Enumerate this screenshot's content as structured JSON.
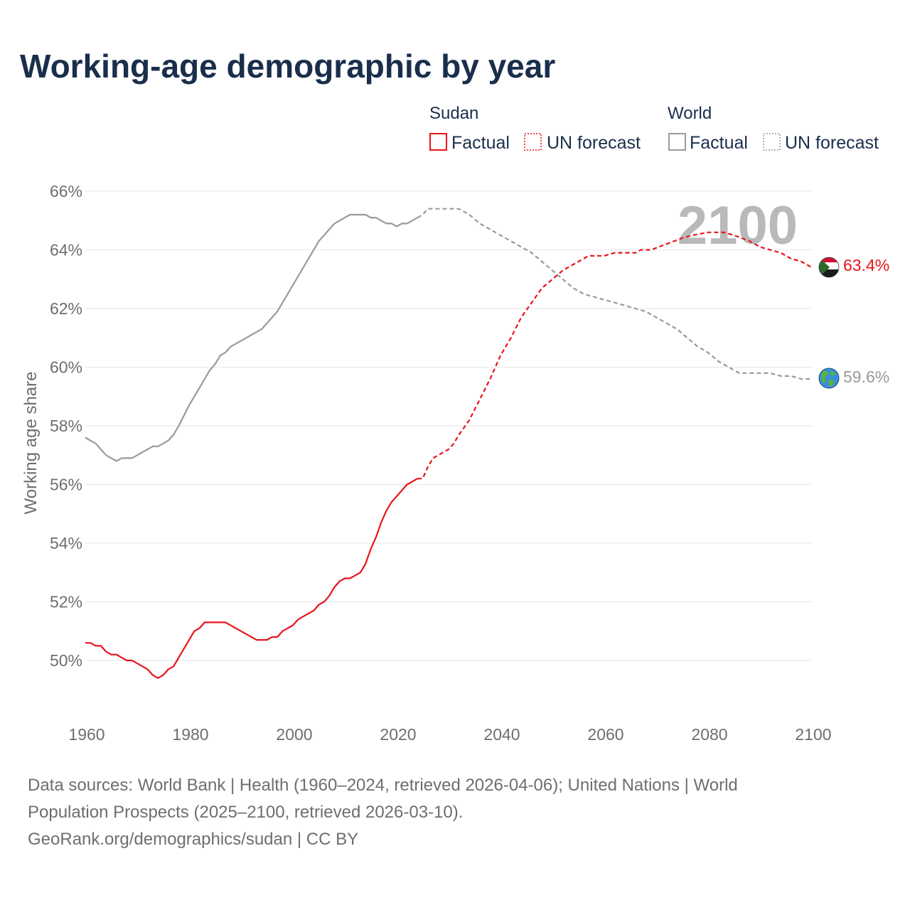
{
  "title": "Working-age demographic by year",
  "legend": {
    "groups": [
      {
        "name": "Sudan",
        "factual_label": "Factual",
        "forecast_label": "UN forecast",
        "color": "#e8141a"
      },
      {
        "name": "World",
        "factual_label": "Factual",
        "forecast_label": "UN forecast",
        "color": "#9a9a9a"
      }
    ]
  },
  "current_year_label": "2100",
  "footer": {
    "line1": "Data sources: World Bank | Health (1960–2024, retrieved 2026-04-06); United Nations | World",
    "line2": "Population Prospects (2025–2100, retrieved 2026-03-10).",
    "line3": "GeoRank.org/demographics/sudan | CC BY"
  },
  "chart_data": {
    "type": "line",
    "title": "Working-age demographic by year",
    "xlabel": "",
    "ylabel": "Working age share",
    "xlim": [
      1960,
      2100
    ],
    "ylim": [
      48.5,
      66.5
    ],
    "x_ticks": [
      "1960",
      "1980",
      "2000",
      "2020",
      "2040",
      "2060",
      "2080",
      "2100"
    ],
    "y_ticks": [
      "50%",
      "52%",
      "54%",
      "56%",
      "58%",
      "60%",
      "62%",
      "64%",
      "66%"
    ],
    "grid": true,
    "series": [
      {
        "name": "Sudan – Factual",
        "style": "solid",
        "color": "#e8141a",
        "x": [
          1960,
          1961,
          1962,
          1963,
          1964,
          1965,
          1966,
          1967,
          1968,
          1969,
          1970,
          1972,
          1973,
          1974,
          1975,
          1976,
          1977,
          1978,
          1980,
          1981,
          1982,
          1983,
          1984,
          1986,
          1987,
          1990,
          1993,
          1995,
          1996,
          1997,
          1998,
          2000,
          2001,
          2002,
          2004,
          2005,
          2006,
          2007,
          2008,
          2009,
          2010,
          2011,
          2012,
          2013,
          2014,
          2015,
          2016,
          2017,
          2018,
          2019,
          2020,
          2021,
          2022,
          2023,
          2024
        ],
        "y": [
          50.6,
          50.6,
          50.5,
          50.5,
          50.3,
          50.2,
          50.2,
          50.1,
          50.0,
          50.0,
          49.9,
          49.7,
          49.5,
          49.4,
          49.5,
          49.7,
          49.8,
          50.1,
          50.7,
          51.0,
          51.1,
          51.3,
          51.3,
          51.3,
          51.3,
          51.0,
          50.7,
          50.7,
          50.8,
          50.8,
          51.0,
          51.2,
          51.4,
          51.5,
          51.7,
          51.9,
          52.0,
          52.2,
          52.5,
          52.7,
          52.8,
          52.8,
          52.9,
          53.0,
          53.3,
          53.8,
          54.2,
          54.7,
          55.1,
          55.4,
          55.6,
          55.8,
          56.0,
          56.1,
          56.2
        ]
      },
      {
        "name": "Sudan – UN forecast",
        "style": "dashed",
        "color": "#e8141a",
        "x": [
          2024,
          2025,
          2026,
          2027,
          2028,
          2030,
          2031,
          2032,
          2034,
          2036,
          2038,
          2040,
          2042,
          2044,
          2046,
          2048,
          2050,
          2052,
          2054,
          2056,
          2057,
          2060,
          2062,
          2066,
          2067,
          2069,
          2072,
          2075,
          2077,
          2080,
          2083,
          2085,
          2088,
          2090,
          2092,
          2094,
          2096,
          2098,
          2100
        ],
        "y": [
          56.2,
          56.2,
          56.6,
          56.9,
          57.0,
          57.2,
          57.4,
          57.7,
          58.2,
          58.9,
          59.6,
          60.4,
          61.0,
          61.7,
          62.2,
          62.7,
          63.0,
          63.3,
          63.5,
          63.7,
          63.8,
          63.8,
          63.9,
          63.9,
          64.0,
          64.0,
          64.2,
          64.4,
          64.5,
          64.6,
          64.6,
          64.5,
          64.3,
          64.1,
          64.0,
          63.9,
          63.7,
          63.6,
          63.4
        ]
      },
      {
        "name": "World – Factual",
        "style": "solid",
        "color": "#9a9a9a",
        "x": [
          1960,
          1962,
          1964,
          1966,
          1967,
          1969,
          1971,
          1972,
          1973,
          1974,
          1975,
          1976,
          1977,
          1978,
          1980,
          1982,
          1984,
          1985,
          1986,
          1987,
          1988,
          1990,
          1992,
          1994,
          1997,
          2000,
          2003,
          2005,
          2008,
          2010,
          2011,
          2014,
          2015,
          2016,
          2017,
          2018,
          2019,
          2020,
          2021,
          2022,
          2023,
          2024
        ],
        "y": [
          57.6,
          57.4,
          57.0,
          56.8,
          56.9,
          56.9,
          57.1,
          57.2,
          57.3,
          57.3,
          57.4,
          57.5,
          57.7,
          58.0,
          58.7,
          59.3,
          59.9,
          60.1,
          60.4,
          60.5,
          60.7,
          60.9,
          61.1,
          61.3,
          61.9,
          62.8,
          63.7,
          64.3,
          64.9,
          65.1,
          65.2,
          65.2,
          65.1,
          65.1,
          65.0,
          64.9,
          64.9,
          64.8,
          64.9,
          64.9,
          65.0,
          65.1
        ]
      },
      {
        "name": "World – UN forecast",
        "style": "dashed",
        "color": "#9a9a9a",
        "x": [
          2024,
          2025,
          2026,
          2028,
          2030,
          2032,
          2034,
          2036,
          2038,
          2040,
          2042,
          2044,
          2046,
          2048,
          2050,
          2052,
          2054,
          2056,
          2058,
          2060,
          2062,
          2064,
          2066,
          2068,
          2070,
          2072,
          2074,
          2076,
          2078,
          2080,
          2082,
          2084,
          2086,
          2088,
          2090,
          2092,
          2094,
          2096,
          2098,
          2100
        ],
        "y": [
          65.1,
          65.2,
          65.4,
          65.4,
          65.4,
          65.4,
          65.2,
          64.9,
          64.7,
          64.5,
          64.3,
          64.1,
          63.9,
          63.6,
          63.3,
          63.0,
          62.7,
          62.5,
          62.4,
          62.3,
          62.2,
          62.1,
          62.0,
          61.9,
          61.7,
          61.5,
          61.3,
          61.0,
          60.7,
          60.5,
          60.2,
          60.0,
          59.8,
          59.8,
          59.8,
          59.8,
          59.7,
          59.7,
          59.6,
          59.6
        ]
      }
    ],
    "end_labels": [
      {
        "series": "Sudan",
        "value": "63.4%",
        "icon": "sudan-flag-icon",
        "color": "#e8141a"
      },
      {
        "series": "World",
        "value": "59.6%",
        "icon": "globe-icon",
        "color": "#9a9a9a"
      }
    ]
  }
}
